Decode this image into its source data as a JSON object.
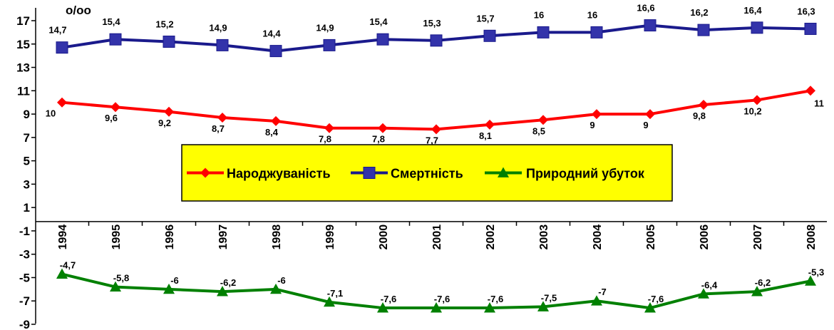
{
  "chart_data": {
    "type": "line",
    "unit_label": "o/oo",
    "categories": [
      "1994",
      "1995",
      "1996",
      "1997",
      "1998",
      "1999",
      "2000",
      "2001",
      "2002",
      "2003",
      "2004",
      "2005",
      "2006",
      "2007",
      "2008"
    ],
    "ylim": [
      -9,
      17
    ],
    "yticks": [
      "17",
      "15",
      "13",
      "11",
      "9",
      "7",
      "5",
      "3",
      "1",
      "-1",
      "-3",
      "-5",
      "-7",
      "-9"
    ],
    "grid": false,
    "legend_position": "center",
    "series": [
      {
        "name": "Народжуваність",
        "color": "#ff0000",
        "marker": "diamond",
        "values": [
          10,
          9.6,
          9.2,
          8.7,
          8.4,
          7.8,
          7.8,
          7.7,
          8.1,
          8.5,
          9,
          9,
          9.8,
          10.2,
          11
        ],
        "labels": [
          "10",
          "9,6",
          "9,2",
          "8,7",
          "8,4",
          "7,8",
          "7,8",
          "7,7",
          "8,1",
          "8,5",
          "9",
          "9",
          "9,8",
          "10,2",
          "11"
        ]
      },
      {
        "name": "Смертність",
        "color": "#1a1a8c",
        "marker": "square",
        "values": [
          14.7,
          15.4,
          15.2,
          14.9,
          14.4,
          14.9,
          15.4,
          15.3,
          15.7,
          16,
          16,
          16.6,
          16.2,
          16.4,
          16.3
        ],
        "labels": [
          "14,7",
          "15,4",
          "15,2",
          "14,9",
          "14,4",
          "14,9",
          "15,4",
          "15,3",
          "15,7",
          "16",
          "16",
          "16,6",
          "16,2",
          "16,4",
          "16,3"
        ]
      },
      {
        "name": "Природний убуток",
        "color": "#008000",
        "marker": "triangle",
        "values": [
          -4.7,
          -5.8,
          -6,
          -6.2,
          -6,
          -7.1,
          -7.6,
          -7.6,
          -7.6,
          -7.5,
          -7,
          -7.6,
          -6.4,
          -6.2,
          -5.3
        ],
        "labels": [
          "-4,7",
          "-5,8",
          "-6",
          "-6,2",
          "-6",
          "-7,1",
          "-7,6",
          "-7,6",
          "-7,6",
          "-7,5",
          "-7",
          "-7,6",
          "-6,4",
          "-6,2",
          "-5,3"
        ]
      }
    ],
    "legend_bg": "#ffff00"
  }
}
